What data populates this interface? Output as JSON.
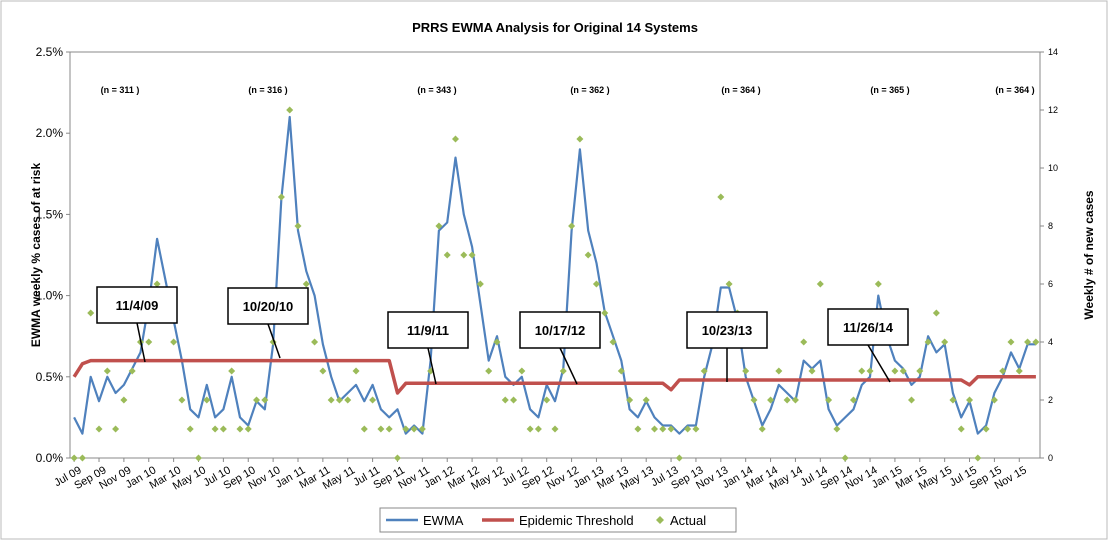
{
  "chart_data": {
    "type": "line",
    "title": "PRRS EWMA Analysis for Original 14 Systems",
    "y_label": "EWMA weekly % cases of at risk",
    "y2_label": "Weekly # of new cases",
    "categories": [
      "Jul 09",
      null,
      null,
      "Sep 09",
      null,
      null,
      "Nov 09",
      null,
      null,
      "Jan 10",
      null,
      null,
      "Mar 10",
      null,
      null,
      "May 10",
      null,
      null,
      "Jul 10",
      null,
      null,
      "Sep 10",
      null,
      null,
      "Nov 10",
      null,
      null,
      "Jan 11",
      null,
      null,
      "Mar 11",
      null,
      null,
      "May 11",
      null,
      null,
      "Jul 11",
      null,
      null,
      "Sep 11",
      null,
      null,
      "Nov 11",
      null,
      null,
      "Jan 12",
      null,
      null,
      "Mar 12",
      null,
      null,
      "May 12",
      null,
      null,
      "Jul 12",
      null,
      null,
      "Sep 12",
      null,
      null,
      "Nov 12",
      null,
      null,
      "Jan 13",
      null,
      null,
      "Mar 13",
      null,
      null,
      "May 13",
      null,
      null,
      "Jul 13",
      null,
      null,
      "Sep 13",
      null,
      null,
      "Nov 13",
      null,
      null,
      "Jan 14",
      null,
      null,
      "Mar 14",
      null,
      null,
      "May 14",
      null,
      null,
      "Jul 14",
      null,
      null,
      "Sep 14",
      null,
      null,
      "Nov 14",
      null,
      null,
      "Jan 15",
      null,
      null,
      "Mar 15",
      null,
      null,
      "May 15",
      null,
      null,
      "Jul 15",
      null,
      null,
      "Sep 15",
      null,
      null,
      "Nov 15",
      null,
      null
    ],
    "series": [
      {
        "name": "EWMA",
        "color": "#4f81bd",
        "values": [
          0.25,
          0.15,
          0.5,
          0.35,
          0.5,
          0.4,
          0.45,
          0.55,
          0.65,
          0.95,
          1.35,
          1.1,
          0.85,
          0.6,
          0.3,
          0.25,
          0.45,
          0.25,
          0.3,
          0.5,
          0.25,
          0.2,
          0.35,
          0.3,
          0.7,
          1.6,
          2.1,
          1.4,
          1.15,
          1.0,
          0.7,
          0.5,
          0.35,
          0.4,
          0.45,
          0.35,
          0.45,
          0.3,
          0.25,
          0.3,
          0.15,
          0.2,
          0.15,
          0.6,
          1.4,
          1.45,
          1.85,
          1.5,
          1.3,
          0.95,
          0.6,
          0.75,
          0.5,
          0.45,
          0.5,
          0.3,
          0.25,
          0.45,
          0.35,
          0.55,
          1.4,
          1.9,
          1.4,
          1.2,
          0.9,
          0.75,
          0.6,
          0.3,
          0.25,
          0.35,
          0.25,
          0.2,
          0.2,
          0.15,
          0.2,
          0.2,
          0.5,
          0.7,
          1.05,
          1.05,
          0.85,
          0.5,
          0.35,
          0.2,
          0.3,
          0.45,
          0.4,
          0.35,
          0.6,
          0.55,
          0.6,
          0.3,
          0.2,
          0.25,
          0.3,
          0.45,
          0.5,
          1.0,
          0.75,
          0.6,
          0.55,
          0.45,
          0.5,
          0.75,
          0.65,
          0.7,
          0.4,
          0.25,
          0.35,
          0.15,
          0.2,
          0.4,
          0.5,
          0.65,
          0.55,
          0.7,
          0.7
        ]
      },
      {
        "name": "Epidemic Threshold",
        "color": "#c0504d",
        "values": [
          0.5,
          0.58,
          0.6,
          0.6,
          0.6,
          0.6,
          0.6,
          0.6,
          0.6,
          0.6,
          0.6,
          0.6,
          0.6,
          0.6,
          0.6,
          0.6,
          0.6,
          0.6,
          0.6,
          0.6,
          0.6,
          0.6,
          0.6,
          0.6,
          0.6,
          0.6,
          0.6,
          0.6,
          0.6,
          0.6,
          0.6,
          0.6,
          0.6,
          0.6,
          0.6,
          0.6,
          0.6,
          0.6,
          0.6,
          0.4,
          0.46,
          0.46,
          0.46,
          0.46,
          0.46,
          0.46,
          0.46,
          0.46,
          0.46,
          0.46,
          0.46,
          0.46,
          0.46,
          0.46,
          0.46,
          0.46,
          0.46,
          0.46,
          0.46,
          0.46,
          0.46,
          0.46,
          0.46,
          0.46,
          0.46,
          0.46,
          0.46,
          0.46,
          0.46,
          0.46,
          0.46,
          0.46,
          0.42,
          0.48,
          0.48,
          0.48,
          0.48,
          0.48,
          0.48,
          0.48,
          0.48,
          0.48,
          0.48,
          0.48,
          0.48,
          0.48,
          0.48,
          0.48,
          0.48,
          0.48,
          0.48,
          0.48,
          0.48,
          0.48,
          0.48,
          0.48,
          0.48,
          0.48,
          0.48,
          0.48,
          0.48,
          0.48,
          0.48,
          0.48,
          0.48,
          0.48,
          0.48,
          0.48,
          0.45,
          0.5,
          0.5,
          0.5,
          0.5,
          0.5,
          0.5,
          0.5,
          0.5
        ]
      },
      {
        "name": "Actual",
        "color": "#9bbb59",
        "axis": "y2",
        "marker": "diamond",
        "values": [
          0,
          0,
          5,
          1,
          3,
          1,
          2,
          3,
          4,
          4,
          6,
          5,
          4,
          2,
          1,
          0,
          2,
          1,
          1,
          3,
          1,
          1,
          2,
          2,
          4,
          9,
          12,
          8,
          6,
          4,
          3,
          2,
          2,
          2,
          3,
          1,
          2,
          1,
          1,
          0,
          1,
          1,
          1,
          3,
          8,
          7,
          11,
          7,
          7,
          6,
          3,
          4,
          2,
          2,
          3,
          1,
          1,
          2,
          1,
          3,
          8,
          11,
          7,
          6,
          5,
          4,
          3,
          2,
          1,
          2,
          1,
          1,
          1,
          0,
          1,
          1,
          3,
          4,
          9,
          6,
          5,
          3,
          2,
          1,
          2,
          3,
          2,
          2,
          4,
          3,
          6,
          2,
          1,
          0,
          2,
          3,
          3,
          6,
          4,
          3,
          3,
          2,
          3,
          4,
          5,
          4,
          2,
          1,
          2,
          0,
          1,
          2,
          3,
          4,
          3,
          4,
          4
        ]
      }
    ],
    "ylim": [
      0,
      2.5
    ],
    "yticks": [
      {
        "value": 0,
        "label": "0.0%"
      },
      {
        "value": 0.5,
        "label": "0.5%"
      },
      {
        "value": 1,
        "label": "1.0%"
      },
      {
        "value": 1.5,
        "label": "1.5%"
      },
      {
        "value": 2,
        "label": "2.0%"
      },
      {
        "value": 2.5,
        "label": "2.5%"
      }
    ],
    "y2lim": [
      0,
      14
    ],
    "y2ticks": [
      0,
      2,
      4,
      6,
      8,
      10,
      12,
      14
    ],
    "n_labels": [
      "(n = 311 )",
      "(n = 316 )",
      "(n = 343 )",
      "(n = 362 )",
      "(n = 364 )",
      "(n = 365 )",
      "(n = 364 )"
    ],
    "annotations": [
      "11/4/09",
      "10/20/10",
      "11/9/11",
      "10/17/12",
      "10/23/13",
      "11/26/14"
    ],
    "legend": "bottom"
  }
}
